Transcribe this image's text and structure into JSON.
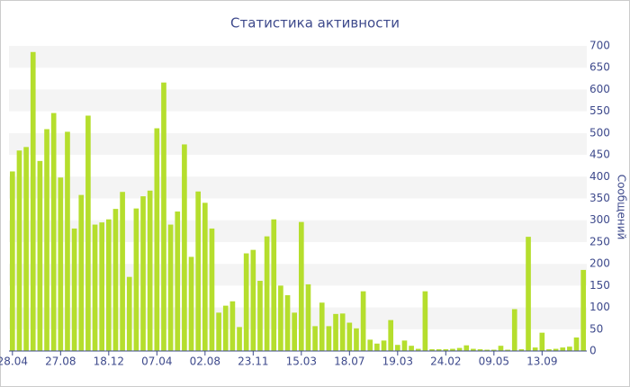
{
  "chart_data": {
    "type": "bar",
    "title": "Статистика активности",
    "y_label": "Сообщений",
    "categories": [
      "28.04",
      null,
      null,
      null,
      null,
      null,
      null,
      "27.08",
      null,
      null,
      null,
      null,
      null,
      null,
      "18.12",
      null,
      null,
      null,
      null,
      null,
      null,
      "07.04",
      null,
      null,
      null,
      null,
      null,
      null,
      "02.08",
      null,
      null,
      null,
      null,
      null,
      null,
      "23.11",
      null,
      null,
      null,
      null,
      null,
      null,
      "15.03",
      null,
      null,
      null,
      null,
      null,
      null,
      "18.07",
      null,
      null,
      null,
      null,
      null,
      null,
      "19.03",
      null,
      null,
      null,
      null,
      null,
      null,
      "24.02",
      null,
      null,
      null,
      null,
      null,
      null,
      "09.05",
      null,
      null,
      null,
      null,
      null,
      null,
      "13.09",
      null,
      null,
      null,
      null,
      null,
      null
    ],
    "values": [
      412,
      460,
      468,
      686,
      436,
      509,
      546,
      398,
      503,
      281,
      358,
      540,
      290,
      295,
      302,
      326,
      365,
      170,
      327,
      355,
      368,
      511,
      616,
      290,
      320,
      474,
      216,
      366,
      340,
      281,
      88,
      104,
      114,
      55,
      224,
      232,
      161,
      263,
      302,
      150,
      128,
      88,
      296,
      153,
      57,
      111,
      57,
      85,
      86,
      65,
      52,
      137,
      26,
      17,
      24,
      71,
      14,
      24,
      12,
      5,
      137,
      4,
      4,
      4,
      5,
      7,
      13,
      5,
      4,
      3,
      3,
      12,
      3,
      96,
      4,
      262,
      8,
      42,
      4,
      5,
      8,
      10,
      31,
      186
    ],
    "color": "#b5de2d",
    "ylim": [
      0,
      700
    ],
    "yticks": [
      0,
      50,
      100,
      150,
      200,
      250,
      300,
      350,
      400,
      450,
      500,
      550,
      600,
      650,
      700
    ],
    "grid": "stripes"
  }
}
